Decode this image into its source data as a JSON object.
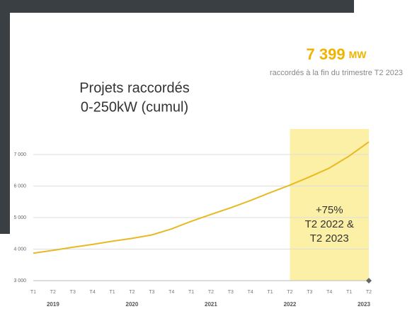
{
  "chart_data": {
    "type": "line",
    "title": [
      "Projets raccordés",
      "0-250kW (cumul)"
    ],
    "headline": "7 399",
    "headline_unit": "MW",
    "subtitle": "raccordés à la fin du trimestre T2 2023",
    "categories": [
      "T1",
      "T2",
      "T3",
      "T4",
      "T1",
      "T2",
      "T3",
      "T4",
      "T1",
      "T2",
      "T3",
      "T4",
      "T1",
      "T2",
      "T3",
      "T4",
      "T1",
      "T2"
    ],
    "years": [
      "2019",
      "2020",
      "2021",
      "2022",
      "2023"
    ],
    "series": [
      {
        "name": "Projets raccordés 0-250kW",
        "color": "#e8b923",
        "values": [
          3870,
          3960,
          4060,
          4150,
          4250,
          4340,
          4450,
          4640,
          4880,
          5100,
          5310,
          5540,
          5790,
          6030,
          6290,
          6570,
          6950,
          7399
        ]
      }
    ],
    "ylim": [
      3000,
      7000
    ],
    "yticks": [
      {
        "value": 3000,
        "label": "3 000"
      },
      {
        "value": 4000,
        "label": "4 000"
      },
      {
        "value": 5000,
        "label": "5 000"
      },
      {
        "value": 6000,
        "label": "6 000"
      },
      {
        "value": 7000,
        "label": "7 000"
      }
    ],
    "grid": true,
    "annotation": [
      "+75%",
      "T2 2022 &",
      "T2 2023"
    ]
  }
}
